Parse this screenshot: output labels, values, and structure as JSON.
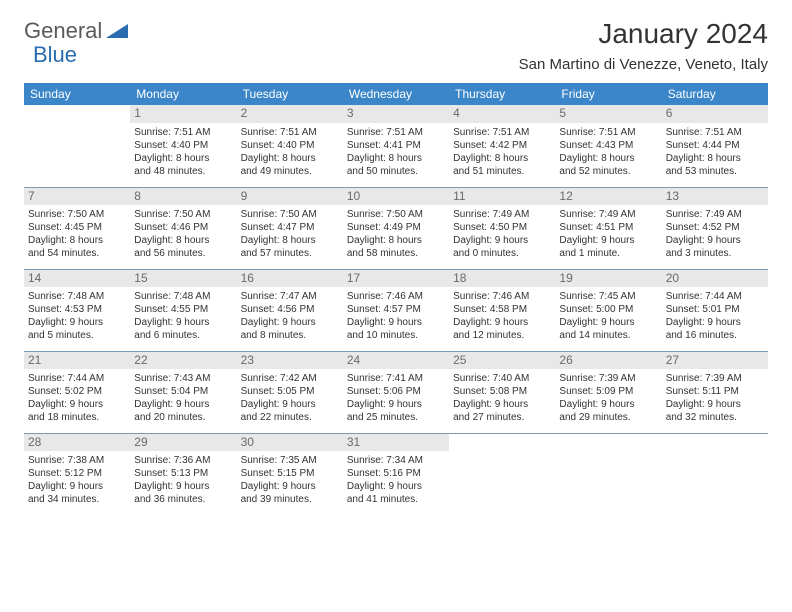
{
  "logo": {
    "text1": "General",
    "text2": "Blue",
    "accent_color": "#2a6cb0",
    "gray_color": "#5a5a5a"
  },
  "header": {
    "title": "January 2024",
    "location": "San Martino di Venezze, Veneto, Italy"
  },
  "colors": {
    "header_bg": "#3a86c8",
    "header_fg": "#ffffff",
    "row_border": "#7a9ab5",
    "daynum_bg": "#e8e8e8",
    "daynum_fg": "#6a6a6a"
  },
  "day_headers": [
    "Sunday",
    "Monday",
    "Tuesday",
    "Wednesday",
    "Thursday",
    "Friday",
    "Saturday"
  ],
  "weeks": [
    [
      null,
      {
        "n": "1",
        "sr": "Sunrise: 7:51 AM",
        "ss": "Sunset: 4:40 PM",
        "d1": "Daylight: 8 hours",
        "d2": "and 48 minutes."
      },
      {
        "n": "2",
        "sr": "Sunrise: 7:51 AM",
        "ss": "Sunset: 4:40 PM",
        "d1": "Daylight: 8 hours",
        "d2": "and 49 minutes."
      },
      {
        "n": "3",
        "sr": "Sunrise: 7:51 AM",
        "ss": "Sunset: 4:41 PM",
        "d1": "Daylight: 8 hours",
        "d2": "and 50 minutes."
      },
      {
        "n": "4",
        "sr": "Sunrise: 7:51 AM",
        "ss": "Sunset: 4:42 PM",
        "d1": "Daylight: 8 hours",
        "d2": "and 51 minutes."
      },
      {
        "n": "5",
        "sr": "Sunrise: 7:51 AM",
        "ss": "Sunset: 4:43 PM",
        "d1": "Daylight: 8 hours",
        "d2": "and 52 minutes."
      },
      {
        "n": "6",
        "sr": "Sunrise: 7:51 AM",
        "ss": "Sunset: 4:44 PM",
        "d1": "Daylight: 8 hours",
        "d2": "and 53 minutes."
      }
    ],
    [
      {
        "n": "7",
        "sr": "Sunrise: 7:50 AM",
        "ss": "Sunset: 4:45 PM",
        "d1": "Daylight: 8 hours",
        "d2": "and 54 minutes."
      },
      {
        "n": "8",
        "sr": "Sunrise: 7:50 AM",
        "ss": "Sunset: 4:46 PM",
        "d1": "Daylight: 8 hours",
        "d2": "and 56 minutes."
      },
      {
        "n": "9",
        "sr": "Sunrise: 7:50 AM",
        "ss": "Sunset: 4:47 PM",
        "d1": "Daylight: 8 hours",
        "d2": "and 57 minutes."
      },
      {
        "n": "10",
        "sr": "Sunrise: 7:50 AM",
        "ss": "Sunset: 4:49 PM",
        "d1": "Daylight: 8 hours",
        "d2": "and 58 minutes."
      },
      {
        "n": "11",
        "sr": "Sunrise: 7:49 AM",
        "ss": "Sunset: 4:50 PM",
        "d1": "Daylight: 9 hours",
        "d2": "and 0 minutes."
      },
      {
        "n": "12",
        "sr": "Sunrise: 7:49 AM",
        "ss": "Sunset: 4:51 PM",
        "d1": "Daylight: 9 hours",
        "d2": "and 1 minute."
      },
      {
        "n": "13",
        "sr": "Sunrise: 7:49 AM",
        "ss": "Sunset: 4:52 PM",
        "d1": "Daylight: 9 hours",
        "d2": "and 3 minutes."
      }
    ],
    [
      {
        "n": "14",
        "sr": "Sunrise: 7:48 AM",
        "ss": "Sunset: 4:53 PM",
        "d1": "Daylight: 9 hours",
        "d2": "and 5 minutes."
      },
      {
        "n": "15",
        "sr": "Sunrise: 7:48 AM",
        "ss": "Sunset: 4:55 PM",
        "d1": "Daylight: 9 hours",
        "d2": "and 6 minutes."
      },
      {
        "n": "16",
        "sr": "Sunrise: 7:47 AM",
        "ss": "Sunset: 4:56 PM",
        "d1": "Daylight: 9 hours",
        "d2": "and 8 minutes."
      },
      {
        "n": "17",
        "sr": "Sunrise: 7:46 AM",
        "ss": "Sunset: 4:57 PM",
        "d1": "Daylight: 9 hours",
        "d2": "and 10 minutes."
      },
      {
        "n": "18",
        "sr": "Sunrise: 7:46 AM",
        "ss": "Sunset: 4:58 PM",
        "d1": "Daylight: 9 hours",
        "d2": "and 12 minutes."
      },
      {
        "n": "19",
        "sr": "Sunrise: 7:45 AM",
        "ss": "Sunset: 5:00 PM",
        "d1": "Daylight: 9 hours",
        "d2": "and 14 minutes."
      },
      {
        "n": "20",
        "sr": "Sunrise: 7:44 AM",
        "ss": "Sunset: 5:01 PM",
        "d1": "Daylight: 9 hours",
        "d2": "and 16 minutes."
      }
    ],
    [
      {
        "n": "21",
        "sr": "Sunrise: 7:44 AM",
        "ss": "Sunset: 5:02 PM",
        "d1": "Daylight: 9 hours",
        "d2": "and 18 minutes."
      },
      {
        "n": "22",
        "sr": "Sunrise: 7:43 AM",
        "ss": "Sunset: 5:04 PM",
        "d1": "Daylight: 9 hours",
        "d2": "and 20 minutes."
      },
      {
        "n": "23",
        "sr": "Sunrise: 7:42 AM",
        "ss": "Sunset: 5:05 PM",
        "d1": "Daylight: 9 hours",
        "d2": "and 22 minutes."
      },
      {
        "n": "24",
        "sr": "Sunrise: 7:41 AM",
        "ss": "Sunset: 5:06 PM",
        "d1": "Daylight: 9 hours",
        "d2": "and 25 minutes."
      },
      {
        "n": "25",
        "sr": "Sunrise: 7:40 AM",
        "ss": "Sunset: 5:08 PM",
        "d1": "Daylight: 9 hours",
        "d2": "and 27 minutes."
      },
      {
        "n": "26",
        "sr": "Sunrise: 7:39 AM",
        "ss": "Sunset: 5:09 PM",
        "d1": "Daylight: 9 hours",
        "d2": "and 29 minutes."
      },
      {
        "n": "27",
        "sr": "Sunrise: 7:39 AM",
        "ss": "Sunset: 5:11 PM",
        "d1": "Daylight: 9 hours",
        "d2": "and 32 minutes."
      }
    ],
    [
      {
        "n": "28",
        "sr": "Sunrise: 7:38 AM",
        "ss": "Sunset: 5:12 PM",
        "d1": "Daylight: 9 hours",
        "d2": "and 34 minutes."
      },
      {
        "n": "29",
        "sr": "Sunrise: 7:36 AM",
        "ss": "Sunset: 5:13 PM",
        "d1": "Daylight: 9 hours",
        "d2": "and 36 minutes."
      },
      {
        "n": "30",
        "sr": "Sunrise: 7:35 AM",
        "ss": "Sunset: 5:15 PM",
        "d1": "Daylight: 9 hours",
        "d2": "and 39 minutes."
      },
      {
        "n": "31",
        "sr": "Sunrise: 7:34 AM",
        "ss": "Sunset: 5:16 PM",
        "d1": "Daylight: 9 hours",
        "d2": "and 41 minutes."
      },
      null,
      null,
      null
    ]
  ]
}
